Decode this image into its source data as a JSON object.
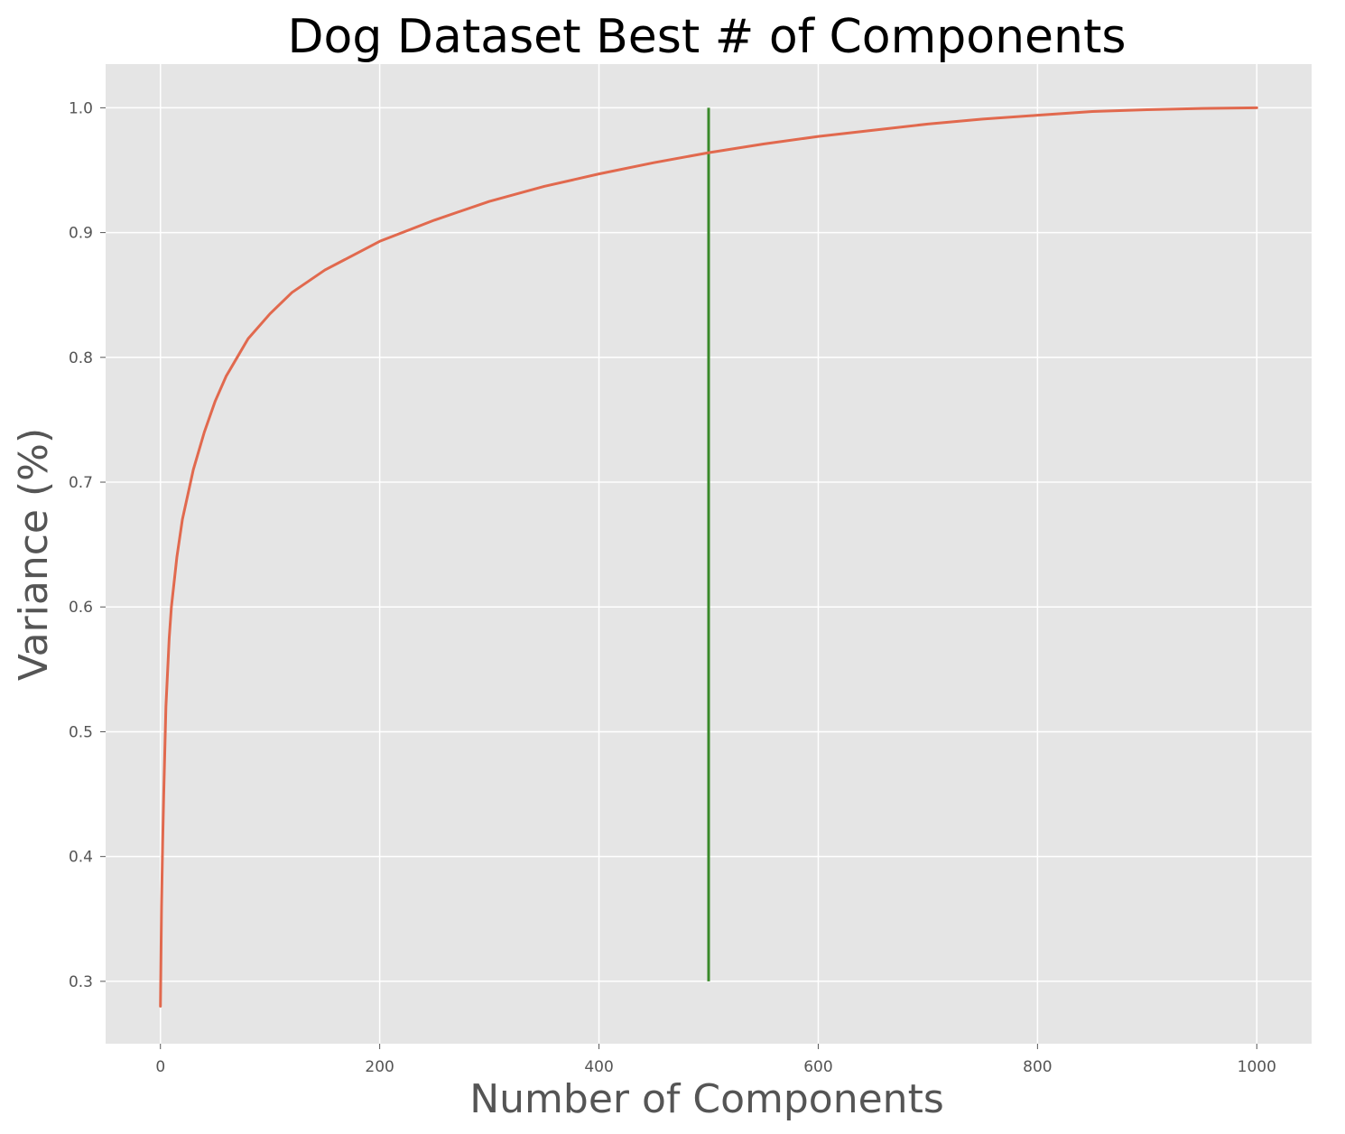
{
  "chart_data": {
    "type": "line",
    "title": "Dog Dataset Best # of Components",
    "xlabel": "Number of Components",
    "ylabel": "Variance (%)",
    "xlim": [
      -50,
      1050
    ],
    "ylim": [
      0.25,
      1.035
    ],
    "xticks": [
      0,
      200,
      400,
      600,
      800,
      1000
    ],
    "yticks": [
      0.3,
      0.4,
      0.5,
      0.6,
      0.7,
      0.8,
      0.9,
      1.0
    ],
    "xtick_labels": [
      "0",
      "200",
      "400",
      "600",
      "800",
      "1000"
    ],
    "ytick_labels": [
      "0.3",
      "0.4",
      "0.5",
      "0.6",
      "0.7",
      "0.8",
      "0.9",
      "1.0"
    ],
    "grid": true,
    "background": "#e5e5e5",
    "series": [
      {
        "color": "#e1694e",
        "x": [
          0,
          1,
          2,
          3,
          5,
          8,
          10,
          15,
          20,
          30,
          40,
          50,
          60,
          70,
          80,
          100,
          120,
          150,
          200,
          250,
          300,
          350,
          400,
          450,
          500,
          550,
          600,
          650,
          700,
          750,
          800,
          850,
          900,
          950,
          1000
        ],
        "y": [
          0.28,
          0.36,
          0.41,
          0.45,
          0.52,
          0.575,
          0.6,
          0.64,
          0.67,
          0.71,
          0.74,
          0.765,
          0.785,
          0.8,
          0.815,
          0.835,
          0.852,
          0.87,
          0.893,
          0.91,
          0.925,
          0.937,
          0.947,
          0.956,
          0.964,
          0.971,
          0.977,
          0.982,
          0.987,
          0.991,
          0.994,
          0.997,
          0.9985,
          0.9995,
          1.0
        ]
      }
    ],
    "vlines": [
      {
        "x": 500,
        "ymin": 0.3,
        "ymax": 1.0,
        "color": "#3a8a2a"
      }
    ]
  }
}
